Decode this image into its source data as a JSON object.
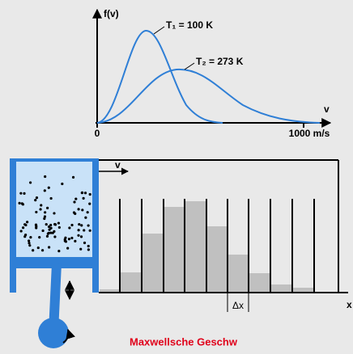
{
  "plot": {
    "y_label": "f(v)",
    "curve_1_label": "T₁ = 100 K",
    "curve_2_label": "T₂ = 273 K",
    "x_label": "v",
    "x_origin": "0",
    "x_end": "1000 m/s"
  },
  "apparatus": {
    "velocity_label": "v",
    "slit_label": "Δx",
    "axis_label": "x"
  },
  "caption": "Maxwellsche Geschw"
}
